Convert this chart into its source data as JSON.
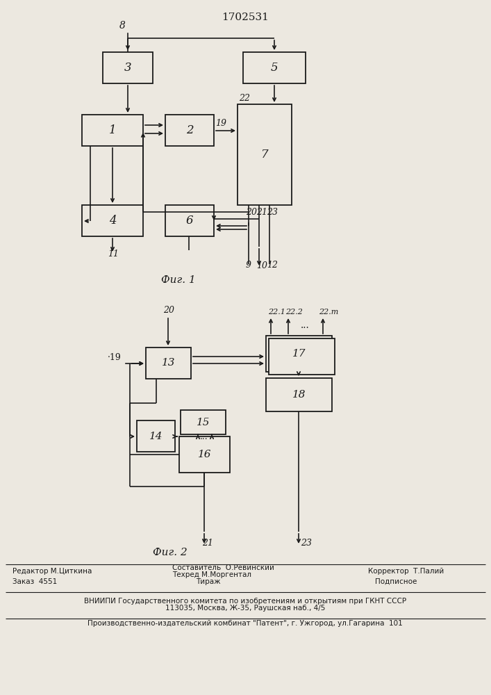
{
  "title": "1702531",
  "fig1_label": "Фиг. 1",
  "fig2_label": "Фиг. 2",
  "background": "#ece8e0",
  "box_color": "#ece8e0",
  "line_color": "#1a1a1a",
  "footer": {
    "editor": "Редактор М.Циткина",
    "composer": "Составитель  О.Ревинский",
    "techred": "Техред М.Моргентал",
    "corrector": "Корректор  Т.Палий",
    "order": "Заказ  4551",
    "tirazh": "Тираж",
    "podpisnoe": "Подписное",
    "vniipи": "ВНИИПИ Государственного комитета по изобретениям и открытиям при ГКНТ СССР",
    "address": "113035, Москва, Ж-35, Раушская наб., 4/5",
    "patent": "Производственно-издательский комбинат \"Патент\", г. Ужгород, ул.Гагарина  101"
  }
}
